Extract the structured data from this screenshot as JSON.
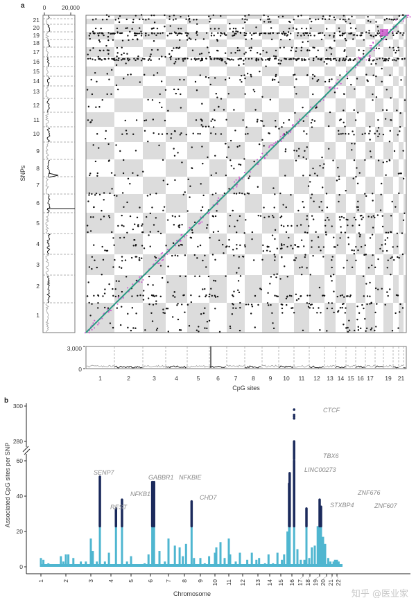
{
  "panel_a": {
    "label": "a",
    "snp_density_ticks": [
      "0",
      "20,000"
    ],
    "ylabel": "SNPs",
    "snp_chrom_labels": [
      "1",
      "2",
      "3",
      "4",
      "5",
      "6",
      "7",
      "8",
      "9",
      "10",
      "11",
      "12",
      "13",
      "14",
      "15",
      "16",
      "17",
      "18",
      "19",
      "20",
      "21"
    ],
    "cpg_density_ticks": [
      "3,000",
      "0"
    ],
    "xlabel": "CpG sites",
    "cpg_chrom_labels": [
      "1",
      "2",
      "3",
      "4",
      "5",
      "6",
      "7",
      "8",
      "9",
      "10",
      "11",
      "12",
      "13",
      "14",
      "15",
      "16",
      "17",
      "19",
      "21"
    ]
  },
  "panel_b": {
    "label": "b",
    "ylabel": "Associated CpG sites per SNP",
    "xlabel": "Chromosome",
    "yticks": [
      "0",
      "20",
      "40",
      "60",
      "280",
      "300"
    ],
    "xticks": [
      "1",
      "2",
      "3",
      "4",
      "5",
      "6",
      "7",
      "8",
      "9",
      "10",
      "11",
      "12",
      "13",
      "14",
      "15",
      "16",
      "17",
      "18",
      "19",
      "20",
      "21",
      "22"
    ],
    "genes": [
      "SENP7",
      "REST",
      "NFKB1",
      "GABBR1",
      "NFKBIE",
      "CHD7",
      "CTCF",
      "TBX6",
      "LINC00273",
      "STXBP4",
      "ZNF676",
      "ZNF607"
    ],
    "watermark": "知乎 @医业家"
  },
  "colors": {
    "checker_gray": "#dcdcdc",
    "trans_dot": "#111111",
    "cis_dot": "#cc55cc",
    "diagonal": "#2a9a84",
    "density_alt": "#111111",
    "density_base": "#a8a8a8",
    "bar_light": "#4fb6d0",
    "bar_dark": "#1b2a5c"
  },
  "chart_data": [
    {
      "type": "scatter",
      "xlabel": "CpG sites",
      "ylabel": "SNPs",
      "grid": "alternating chromosome checkerboard",
      "marginal_top_axis": {
        "ticks": [
          0,
          20000
        ]
      },
      "marginal_bottom_axis": {
        "ticks": [
          0,
          3000
        ]
      }
    },
    {
      "type": "bar",
      "xlabel": "Chromosome",
      "ylabel": "Associated CpG sites per SNP",
      "ylim": [
        0,
        300
      ],
      "y_axis_break": [
        60,
        280
      ],
      "dark_threshold": 23,
      "points": [
        [
          1.0,
          5
        ],
        [
          1.1,
          4
        ],
        [
          1.3,
          2
        ],
        [
          1.5,
          1
        ],
        [
          1.8,
          6
        ],
        [
          1.9,
          3
        ],
        [
          2.0,
          7
        ],
        [
          2.1,
          7
        ],
        [
          2.3,
          5
        ],
        [
          2.6,
          3
        ],
        [
          2.8,
          3
        ],
        [
          3.0,
          16
        ],
        [
          3.1,
          9
        ],
        [
          3.3,
          3
        ],
        [
          3.45,
          51
        ],
        [
          3.7,
          3
        ],
        [
          3.9,
          8
        ],
        [
          4.25,
          33
        ],
        [
          4.55,
          38
        ],
        [
          4.8,
          3
        ],
        [
          5.0,
          6
        ],
        [
          5.4,
          1
        ],
        [
          5.7,
          2
        ],
        [
          5.9,
          7
        ],
        [
          6.1,
          48
        ],
        [
          6.2,
          48
        ],
        [
          6.5,
          9
        ],
        [
          6.8,
          3
        ],
        [
          7.0,
          16
        ],
        [
          7.4,
          12
        ],
        [
          7.7,
          11
        ],
        [
          7.9,
          6
        ],
        [
          8.1,
          13
        ],
        [
          8.45,
          37
        ],
        [
          8.6,
          5
        ],
        [
          9.0,
          5
        ],
        [
          9.3,
          2
        ],
        [
          9.6,
          6
        ],
        [
          10.0,
          8
        ],
        [
          10.1,
          11
        ],
        [
          10.4,
          14
        ],
        [
          10.7,
          5
        ],
        [
          11.0,
          16
        ],
        [
          11.1,
          7
        ],
        [
          11.5,
          3
        ],
        [
          11.8,
          8
        ],
        [
          12.3,
          4
        ],
        [
          12.6,
          8
        ],
        [
          12.9,
          4
        ],
        [
          13.1,
          5
        ],
        [
          13.6,
          2
        ],
        [
          13.9,
          7
        ],
        [
          14.3,
          2
        ],
        [
          14.7,
          8
        ],
        [
          15.1,
          4
        ],
        [
          15.3,
          7
        ],
        [
          15.6,
          20
        ],
        [
          15.75,
          47
        ],
        [
          15.8,
          53
        ],
        [
          16.2,
          280
        ],
        [
          16.5,
          10
        ],
        [
          16.8,
          4
        ],
        [
          17.2,
          4
        ],
        [
          17.5,
          33
        ],
        [
          17.9,
          5
        ],
        [
          18.2,
          11
        ],
        [
          18.5,
          12
        ],
        [
          18.8,
          23
        ],
        [
          19.0,
          38
        ],
        [
          19.2,
          34
        ],
        [
          19.5,
          17
        ],
        [
          19.8,
          13
        ],
        [
          20.3,
          5
        ],
        [
          20.7,
          3
        ],
        [
          21.3,
          3
        ],
        [
          21.6,
          4
        ],
        [
          22.0,
          4
        ],
        [
          22.3,
          3
        ]
      ],
      "outlier_points": [
        [
          16.2,
          293
        ],
        [
          16.2,
          294
        ],
        [
          16.2,
          295
        ],
        [
          16.2,
          298
        ]
      ],
      "annotations": [
        {
          "gene": "SENP7",
          "chrom": 3,
          "value": 51
        },
        {
          "gene": "REST",
          "chrom": 4,
          "value": 33
        },
        {
          "gene": "NFKB1",
          "chrom": 4,
          "value": 38
        },
        {
          "gene": "GABBR1",
          "chrom": 6,
          "value": 48
        },
        {
          "gene": "NFKBIE",
          "chrom": 6,
          "value": 48
        },
        {
          "gene": "CHD7",
          "chrom": 8,
          "value": 37
        },
        {
          "gene": "CTCF",
          "chrom": 16,
          "value": 298
        },
        {
          "gene": "TBX6",
          "chrom": 16,
          "value": 62
        },
        {
          "gene": "LINC00273",
          "chrom": 16,
          "value": 53
        },
        {
          "gene": "STXBP4",
          "chrom": 17,
          "value": 33
        },
        {
          "gene": "ZNF676",
          "chrom": 19,
          "value": 38
        },
        {
          "gene": "ZNF607",
          "chrom": 19,
          "value": 34
        }
      ]
    }
  ]
}
